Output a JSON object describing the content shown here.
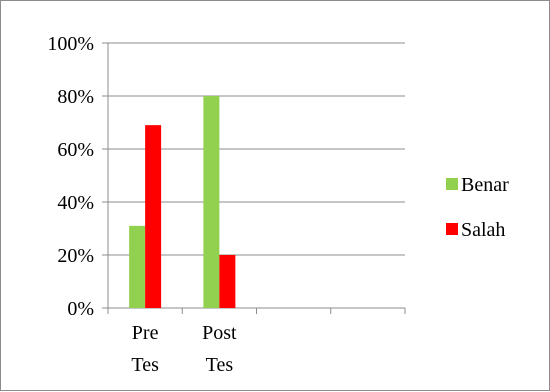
{
  "chart_data": {
    "type": "bar",
    "categories": [
      [
        "Pre",
        "Tes"
      ],
      [
        "Post",
        "Tes"
      ],
      [
        "",
        ""
      ],
      [
        "",
        ""
      ]
    ],
    "series": [
      {
        "name": "Benar",
        "color": "#92d050",
        "values": [
          31,
          80,
          null,
          null
        ]
      },
      {
        "name": "Salah",
        "color": "#ff0000",
        "values": [
          69,
          20,
          null,
          null
        ]
      }
    ],
    "ylim": [
      0,
      100
    ],
    "yticks": [
      0,
      20,
      40,
      60,
      80,
      100
    ],
    "ytick_labels": [
      "0%",
      "20%",
      "40%",
      "60%",
      "80%",
      "100%"
    ],
    "grid": true,
    "legend": "right",
    "title": "",
    "xlabel": "",
    "ylabel": ""
  }
}
